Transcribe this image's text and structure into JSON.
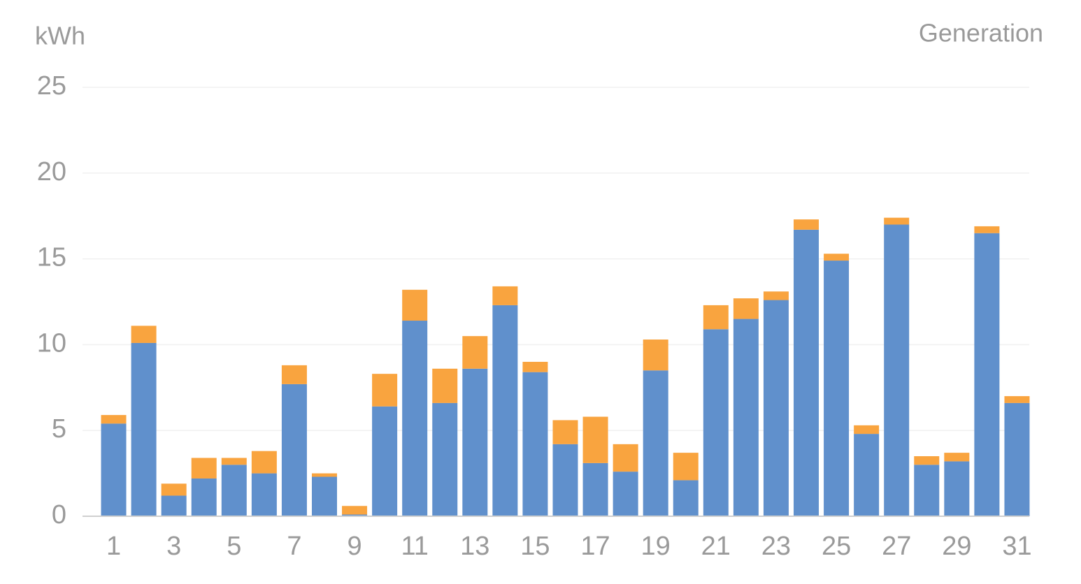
{
  "chart_data": {
    "type": "bar",
    "stacked": true,
    "y_label": "kWh",
    "label": "Generation",
    "categories": [
      "1",
      null,
      "3",
      null,
      "5",
      null,
      "7",
      null,
      "9",
      null,
      "11",
      null,
      "13",
      null,
      "15",
      null,
      "17",
      null,
      "19",
      null,
      "21",
      null,
      "23",
      null,
      "25",
      null,
      "27",
      null,
      "29",
      null,
      "31"
    ],
    "series": [
      {
        "color": "#6090cc",
        "values": [
          5.4,
          10.1,
          1.2,
          2.2,
          3.0,
          2.5,
          7.7,
          2.3,
          0.1,
          6.4,
          11.4,
          6.6,
          8.6,
          12.3,
          8.4,
          4.2,
          3.1,
          2.6,
          8.5,
          2.1,
          10.9,
          11.5,
          12.6,
          16.7,
          14.9,
          4.8,
          17.0,
          3.0,
          3.2,
          16.5,
          6.6
        ]
      },
      {
        "color": "#f9a43f",
        "values": [
          0.5,
          1.0,
          0.7,
          1.2,
          0.4,
          1.3,
          1.1,
          0.2,
          0.5,
          1.9,
          1.8,
          2.0,
          1.9,
          1.1,
          0.6,
          1.4,
          2.7,
          1.6,
          1.8,
          1.6,
          1.4,
          1.2,
          0.5,
          0.6,
          0.4,
          0.5,
          0.4,
          0.5,
          0.5,
          0.4,
          0.4
        ]
      }
    ],
    "ylim": [
      0,
      25
    ],
    "yticks": [
      0,
      5,
      10,
      15,
      20,
      25
    ],
    "grid": true
  }
}
